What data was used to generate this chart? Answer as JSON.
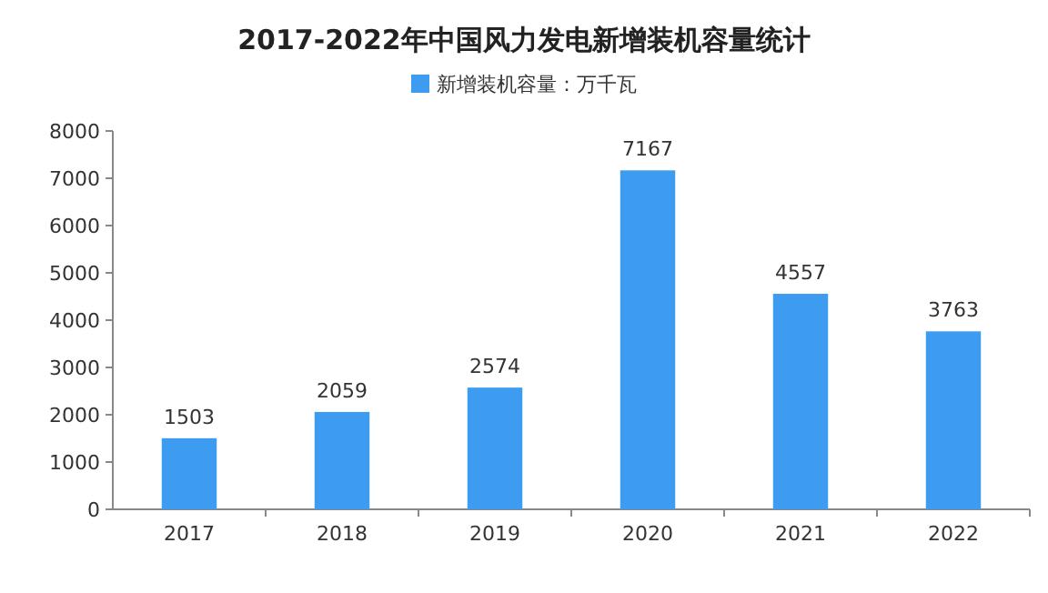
{
  "chart_data": {
    "type": "bar",
    "title": "2017-2022年中国风力发电新增装机容量统计",
    "categories": [
      "2017",
      "2018",
      "2019",
      "2020",
      "2021",
      "2022"
    ],
    "series": [
      {
        "name": "新增装机容量：万千瓦",
        "color": "#3d9bf0",
        "values": [
          1503,
          2059,
          2574,
          7167,
          4557,
          3763
        ]
      }
    ],
    "ylim": [
      0,
      8000
    ],
    "yticks": [
      0,
      1000,
      2000,
      3000,
      4000,
      5000,
      6000,
      7000,
      8000
    ],
    "data_labels": true,
    "legend": "top"
  }
}
